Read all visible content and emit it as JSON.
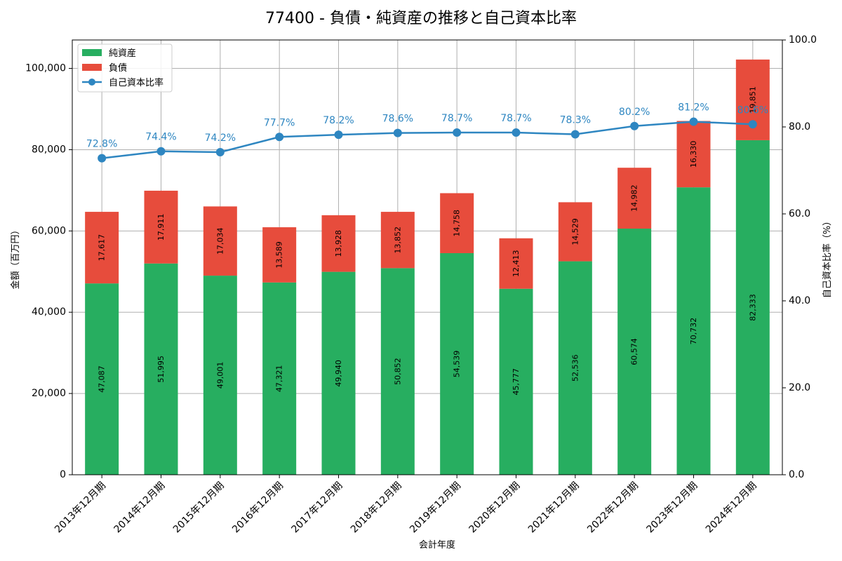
{
  "chart_data": {
    "type": "bar",
    "title": "77400 - 負債・純資産の推移と自己資本比率",
    "xlabel": "会計年度",
    "ylabel": "金額（百万円）",
    "y2label": "自己資本比率（%）",
    "ylim": [
      0,
      107000
    ],
    "y2lim": [
      0,
      100
    ],
    "yticks": [
      0,
      20000,
      40000,
      60000,
      80000,
      100000
    ],
    "yticks_labels": [
      "0",
      "20,000",
      "40,000",
      "60,000",
      "80,000",
      "100,000"
    ],
    "y2ticks": [
      0,
      20,
      40,
      60,
      80,
      100
    ],
    "y2ticks_labels": [
      "0.0",
      "20.0",
      "40.0",
      "60.0",
      "80.0",
      "100.0"
    ],
    "grid": true,
    "legend_position": "top-left",
    "categories": [
      "2013年12月期",
      "2014年12月期",
      "2015年12月期",
      "2016年12月期",
      "2017年12月期",
      "2018年12月期",
      "2019年12月期",
      "2020年12月期",
      "2021年12月期",
      "2022年12月期",
      "2023年12月期",
      "2024年12月期"
    ],
    "series": [
      {
        "name": "純資産",
        "kind": "bar",
        "color": "#27ae60",
        "values": [
          47087,
          51995,
          49001,
          47321,
          49940,
          50852,
          54539,
          45777,
          52536,
          60574,
          70732,
          82333
        ],
        "labels": [
          "47,087",
          "51,995",
          "49,001",
          "47,321",
          "49,940",
          "50,852",
          "54,539",
          "45,777",
          "52,536",
          "60,574",
          "70,732",
          "82,333"
        ]
      },
      {
        "name": "負債",
        "kind": "bar",
        "color": "#e74c3c",
        "values": [
          17617,
          17911,
          17034,
          13589,
          13928,
          13852,
          14758,
          12413,
          14529,
          14982,
          16330,
          19851
        ],
        "labels": [
          "17,617",
          "17,911",
          "17,034",
          "13,589",
          "13,928",
          "13,852",
          "14,758",
          "12,413",
          "14,529",
          "14,982",
          "16,330",
          "19,851"
        ]
      },
      {
        "name": "自己資本比率",
        "kind": "line",
        "axis": "right",
        "color": "#2e86c1",
        "values": [
          72.8,
          74.4,
          74.2,
          77.7,
          78.2,
          78.6,
          78.7,
          78.7,
          78.3,
          80.2,
          81.2,
          80.6
        ],
        "labels": [
          "72.8%",
          "74.4%",
          "74.2%",
          "77.7%",
          "78.2%",
          "78.6%",
          "78.7%",
          "78.7%",
          "78.3%",
          "80.2%",
          "81.2%",
          "80.6%"
        ]
      }
    ]
  }
}
